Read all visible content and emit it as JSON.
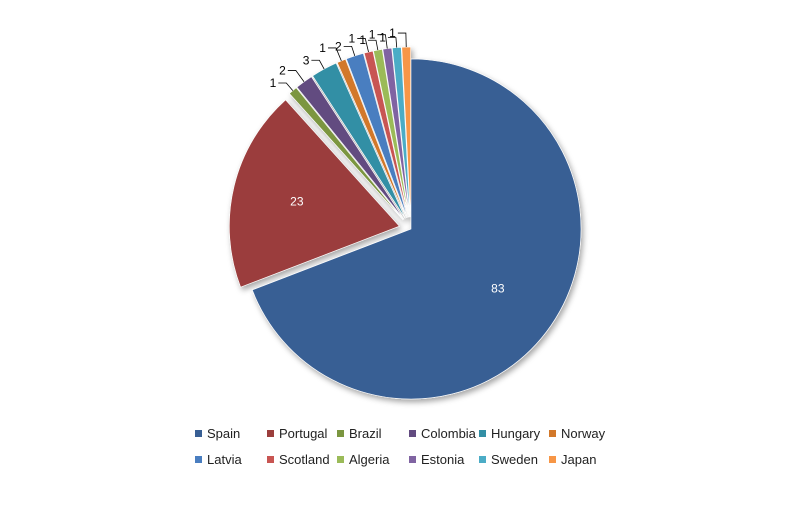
{
  "chart_data": {
    "type": "pie",
    "title": "",
    "legend_position": "bottom",
    "slices": [
      {
        "label": "Spain",
        "value": 83,
        "color": "#385f94",
        "exploded": false,
        "label_style": "inside-white"
      },
      {
        "label": "Portugal",
        "value": 23,
        "color": "#9b3e3c",
        "exploded": true,
        "label_style": "inside-white"
      },
      {
        "label": "Brazil",
        "value": 1,
        "color": "#7b9640",
        "exploded": true,
        "label_style": "leader"
      },
      {
        "label": "Colombia",
        "value": 2,
        "color": "#624b80",
        "exploded": true,
        "label_style": "leader"
      },
      {
        "label": "Hungary",
        "value": 3,
        "color": "#338fa5",
        "exploded": true,
        "label_style": "leader"
      },
      {
        "label": "Norway",
        "value": 1,
        "color": "#d2782a",
        "exploded": true,
        "label_style": "leader"
      },
      {
        "label": "Latvia",
        "value": 2,
        "color": "#4a7ec0",
        "exploded": true,
        "label_style": "leader"
      },
      {
        "label": "Scotland",
        "value": 1,
        "color": "#c85552",
        "exploded": true,
        "label_style": "leader"
      },
      {
        "label": "Algeria",
        "value": 1,
        "color": "#9bbb59",
        "exploded": true,
        "label_style": "leader"
      },
      {
        "label": "Estonia",
        "value": 1,
        "color": "#8064a2",
        "exploded": true,
        "label_style": "leader"
      },
      {
        "label": "Sweden",
        "value": 1,
        "color": "#4bacc6",
        "exploded": true,
        "label_style": "leader"
      },
      {
        "label": "Japan",
        "value": 1,
        "color": "#f79646",
        "exploded": true,
        "label_style": "leader"
      }
    ]
  }
}
